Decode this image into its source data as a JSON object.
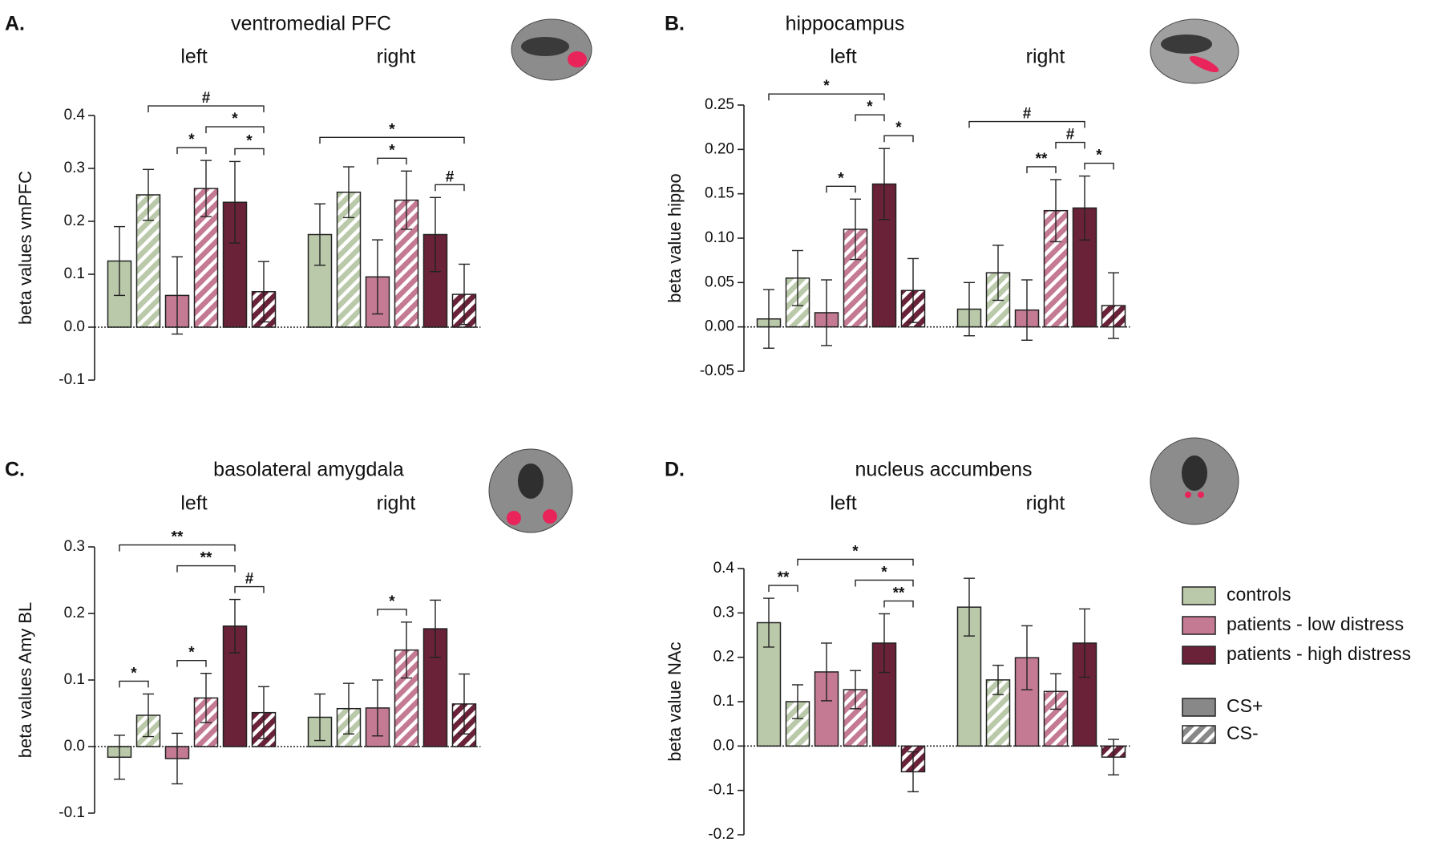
{
  "legend": {
    "groups": [
      {
        "name": "controls",
        "color": "#b9c9a9"
      },
      {
        "name": "patients - low distress",
        "color": "#c47a93"
      },
      {
        "name": "patients - high distress",
        "color": "#6a2239"
      }
    ],
    "conditions": [
      "CS+",
      "CS-"
    ],
    "condition_color": "#888888"
  },
  "chart_data": [
    {
      "type": "bar",
      "panel": "A.",
      "title": "ventromedial PFC",
      "categories": [
        "left",
        "right"
      ],
      "ylabel": "beta values vmPFC",
      "ylim": [
        -0.1,
        0.4
      ],
      "yticks": [
        -0.1,
        {
          "value": 0,
          "label": "0.0"
        },
        0.1,
        0.2,
        0.3,
        0.4
      ],
      "series": [
        {
          "values": [
            0.125,
            0.175
          ],
          "errors": [
            0.065,
            0.058
          ]
        },
        {
          "values": [
            0.25,
            0.255
          ],
          "errors": [
            0.048,
            0.048
          ]
        },
        {
          "values": [
            0.06,
            0.095
          ],
          "errors": [
            0.073,
            0.07
          ]
        },
        {
          "values": [
            0.262,
            0.24
          ],
          "errors": [
            0.053,
            0.055
          ]
        },
        {
          "values": [
            0.236,
            0.175
          ],
          "errors": [
            0.077,
            0.07
          ]
        },
        {
          "values": [
            0.067,
            0.062
          ],
          "errors": [
            0.057,
            0.057
          ]
        }
      ],
      "brackets": [
        {
          "bars": [
            2,
            3
          ],
          "label": "*"
        },
        {
          "bars": [
            4,
            5
          ],
          "label": "*"
        },
        {
          "bars": [
            3,
            5
          ],
          "label": "*"
        },
        {
          "bars": [
            1,
            5
          ],
          "label": "#"
        },
        {
          "bars": [
            8,
            9
          ],
          "label": "*"
        },
        {
          "bars": [
            10,
            11
          ],
          "label": "#"
        },
        {
          "bars": [
            6,
            11
          ],
          "label": "*"
        }
      ]
    },
    {
      "type": "bar",
      "panel": "B.",
      "title": "hippocampus",
      "categories": [
        "left",
        "right"
      ],
      "ylabel": "beta value hippo",
      "ylim": [
        -0.05,
        0.25
      ],
      "yticks": [
        -0.05,
        {
          "value": 0,
          "label": "0.00"
        },
        0.05,
        {
          "value": 0.1,
          "label": "0.10"
        },
        0.15,
        {
          "value": 0.2,
          "label": "0.20"
        },
        0.25
      ],
      "series": [
        {
          "values": [
            0.009,
            0.02
          ],
          "errors": [
            0.033,
            0.03
          ]
        },
        {
          "values": [
            0.055,
            0.061
          ],
          "errors": [
            0.031,
            0.031
          ]
        },
        {
          "values": [
            0.016,
            0.019
          ],
          "errors": [
            0.037,
            0.034
          ]
        },
        {
          "values": [
            0.11,
            0.131
          ],
          "errors": [
            0.034,
            0.035
          ]
        },
        {
          "values": [
            0.161,
            0.134
          ],
          "errors": [
            0.04,
            0.036
          ]
        },
        {
          "values": [
            0.041,
            0.024
          ],
          "errors": [
            0.036,
            0.037
          ]
        }
      ],
      "brackets": [
        {
          "bars": [
            2,
            3
          ],
          "label": "*"
        },
        {
          "bars": [
            4,
            5
          ],
          "label": "*"
        },
        {
          "bars": [
            3,
            4
          ],
          "label": "*"
        },
        {
          "bars": [
            0,
            4
          ],
          "label": "*"
        },
        {
          "bars": [
            8,
            9
          ],
          "label": "**"
        },
        {
          "bars": [
            10,
            11
          ],
          "label": "*"
        },
        {
          "bars": [
            9,
            10
          ],
          "label": "#"
        },
        {
          "bars": [
            6,
            10
          ],
          "label": "#"
        }
      ]
    },
    {
      "type": "bar",
      "panel": "C.",
      "title": "basolateral amygdala",
      "categories": [
        "left",
        "right"
      ],
      "ylabel": "beta values Amy BL",
      "ylim": [
        -0.1,
        0.3
      ],
      "yticks": [
        -0.1,
        {
          "value": 0,
          "label": "0.0"
        },
        0.1,
        0.2,
        0.3
      ],
      "series": [
        {
          "values": [
            -0.016,
            0.044
          ],
          "errors": [
            0.033,
            0.035
          ]
        },
        {
          "values": [
            0.047,
            0.057
          ],
          "errors": [
            0.032,
            0.038
          ]
        },
        {
          "values": [
            -0.018,
            0.058
          ],
          "errors": [
            0.038,
            0.042
          ]
        },
        {
          "values": [
            0.073,
            0.145
          ],
          "errors": [
            0.037,
            0.042
          ]
        },
        {
          "values": [
            0.181,
            0.177
          ],
          "errors": [
            0.04,
            0.043
          ]
        },
        {
          "values": [
            0.051,
            0.064
          ],
          "errors": [
            0.039,
            0.045
          ]
        }
      ],
      "brackets": [
        {
          "bars": [
            0,
            1
          ],
          "label": "*"
        },
        {
          "bars": [
            2,
            3
          ],
          "label": "*"
        },
        {
          "bars": [
            4,
            5
          ],
          "label": "#"
        },
        {
          "bars": [
            2,
            4
          ],
          "label": "**"
        },
        {
          "bars": [
            0,
            4
          ],
          "label": "**"
        },
        {
          "bars": [
            8,
            9
          ],
          "label": "*"
        }
      ]
    },
    {
      "type": "bar",
      "panel": "D.",
      "title": "nucleus accumbens",
      "categories": [
        "left",
        "right"
      ],
      "ylabel": "beta value NAc",
      "ylim": [
        -0.2,
        0.4
      ],
      "yticks": [
        -0.2,
        -0.1,
        {
          "value": 0,
          "label": "0.0"
        },
        0.1,
        0.2,
        0.3,
        0.4
      ],
      "series": [
        {
          "values": [
            0.278,
            0.313
          ],
          "errors": [
            0.055,
            0.065
          ]
        },
        {
          "values": [
            0.1,
            0.149
          ],
          "errors": [
            0.038,
            0.033
          ]
        },
        {
          "values": [
            0.167,
            0.199
          ],
          "errors": [
            0.065,
            0.072
          ]
        },
        {
          "values": [
            0.127,
            0.123
          ],
          "errors": [
            0.043,
            0.04
          ]
        },
        {
          "values": [
            0.232,
            0.232
          ],
          "errors": [
            0.066,
            0.077
          ]
        },
        {
          "values": [
            -0.058,
            -0.025
          ],
          "errors": [
            0.045,
            0.04
          ]
        }
      ],
      "brackets": [
        {
          "bars": [
            0,
            1
          ],
          "label": "**"
        },
        {
          "bars": [
            4,
            5
          ],
          "label": "**"
        },
        {
          "bars": [
            3,
            5
          ],
          "label": "*"
        },
        {
          "bars": [
            1,
            5
          ],
          "label": "*"
        }
      ]
    }
  ]
}
